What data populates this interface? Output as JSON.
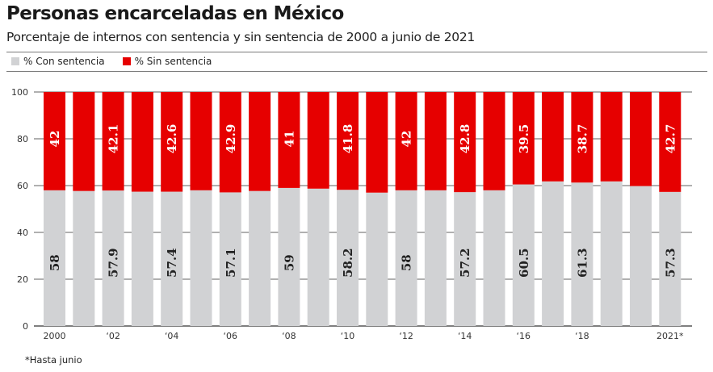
{
  "header": {
    "title": "Personas encarceladas en México",
    "subtitle": "Porcentaje de internos con sentencia y sin sentencia de 2000 a junio de 2021"
  },
  "legend": [
    {
      "label": "% Con sentencia",
      "color": "#d1d2d4"
    },
    {
      "label": "% Sin sentencia",
      "color": "#e60000"
    }
  ],
  "footnote": "*Hasta junio",
  "colors": {
    "con_sentencia": "#d1d2d4",
    "sin_sentencia": "#e60000",
    "grid": "#808080",
    "axis": "#333333"
  },
  "chart_data": {
    "type": "bar",
    "stacked": true,
    "title": "Personas encarceladas en México",
    "subtitle": "Porcentaje de internos con sentencia y sin sentencia de 2000 a junio de 2021",
    "xlabel": "",
    "ylabel": "",
    "ylim": [
      0,
      100
    ],
    "yticks": [
      0,
      20,
      40,
      60,
      80,
      100
    ],
    "grid": true,
    "legend_position": "top-left",
    "categories": [
      "2000",
      "2001",
      "2002",
      "2003",
      "2004",
      "2005",
      "2006",
      "2007",
      "2008",
      "2009",
      "2010",
      "2011",
      "2012",
      "2013",
      "2014",
      "2015",
      "2016",
      "2017",
      "2018",
      "2019",
      "2020",
      "2021"
    ],
    "xtick_labels": [
      "2000",
      "",
      "‘02",
      "",
      "‘04",
      "",
      "‘06",
      "",
      "‘08",
      "",
      "‘10",
      "",
      "‘12",
      "",
      "‘14",
      "",
      "‘16",
      "",
      "‘18",
      "",
      "",
      "2021*"
    ],
    "series": [
      {
        "name": "% Con sentencia",
        "color": "#d1d2d4",
        "values": [
          58,
          57.7,
          57.9,
          57.4,
          57.4,
          58.0,
          57.1,
          57.7,
          59,
          58.7,
          58.2,
          57.0,
          58,
          58.0,
          57.2,
          58.0,
          60.5,
          61.8,
          61.3,
          61.8,
          59.8,
          57.3
        ]
      },
      {
        "name": "% Sin sentencia",
        "color": "#e60000",
        "values": [
          42,
          42.3,
          42.1,
          42.6,
          42.6,
          42.0,
          42.9,
          42.3,
          41,
          41.3,
          41.8,
          43.0,
          42,
          42.0,
          42.8,
          42.0,
          39.5,
          38.2,
          38.7,
          38.2,
          40.2,
          42.7
        ]
      }
    ],
    "data_labels": {
      "% Con sentencia": [
        "58",
        "",
        "57.9",
        "",
        "57.4",
        "",
        "57.1",
        "",
        "59",
        "",
        "58.2",
        "",
        "58",
        "",
        "57.2",
        "",
        "60.5",
        "",
        "61.3",
        "",
        "",
        "57.3"
      ],
      "% Sin sentencia": [
        "42",
        "",
        "42.1",
        "",
        "42.6",
        "",
        "42.9",
        "",
        "41",
        "",
        "41.8",
        "",
        "42",
        "",
        "42.8",
        "",
        "39.5",
        "",
        "38.7",
        "",
        "",
        "42.7"
      ]
    }
  }
}
